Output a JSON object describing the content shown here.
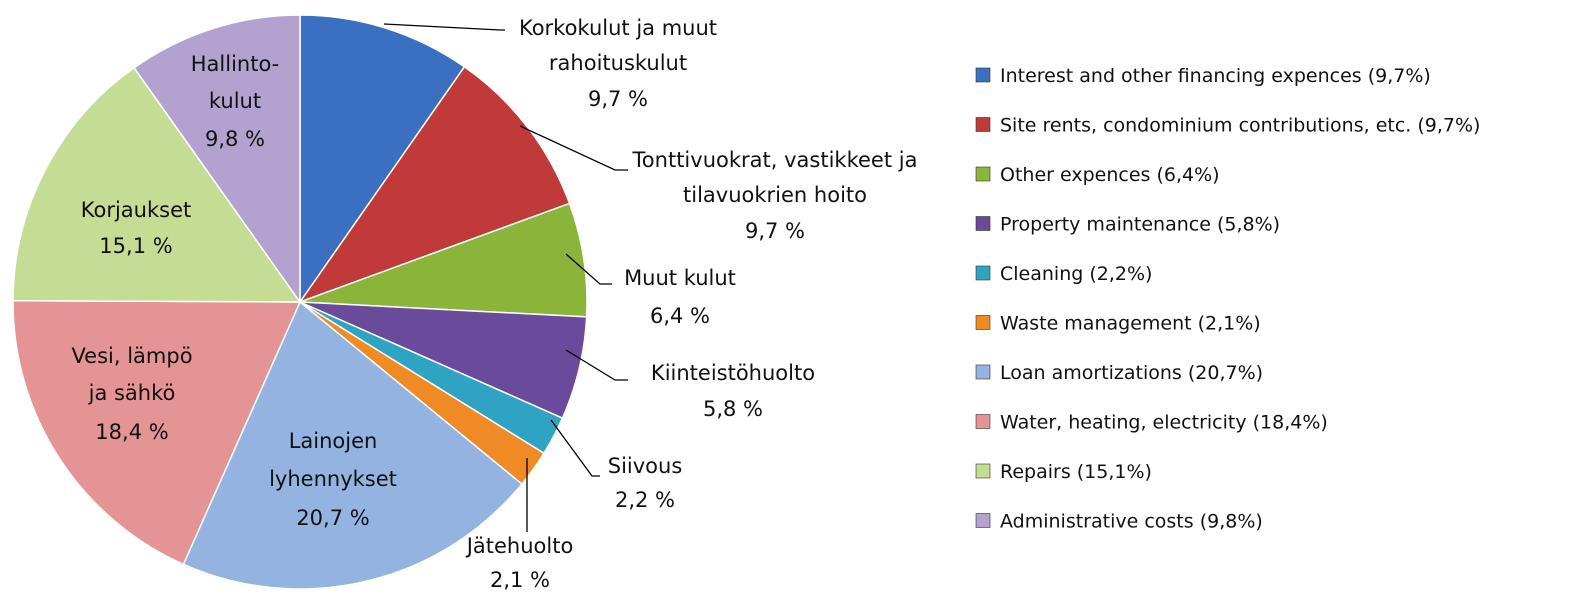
{
  "chart_data": {
    "type": "pie",
    "start_angle": "12 o'clock",
    "direction": "clockwise",
    "slices": [
      {
        "label_lines": [
          "Korkokulut ja muut",
          "rahoituskulut"
        ],
        "value": 9.7,
        "value_text": "9,7 %",
        "legend": "Interest and other financing expences (9,7%)",
        "color": "#3b6fbf",
        "label_inside": false
      },
      {
        "label_lines": [
          "Tonttivuokrat, vastikkeet ja",
          "tilavuokrien hoito"
        ],
        "value": 9.7,
        "value_text": "9,7 %",
        "legend": "Site rents, condominium contributions, etc. (9,7%)",
        "color": "#c13a3a",
        "label_inside": false
      },
      {
        "label_lines": [
          "Muut kulut"
        ],
        "value": 6.4,
        "value_text": "6,4 %",
        "legend": "Other expences (6,4%)",
        "color": "#8ab43a",
        "label_inside": false
      },
      {
        "label_lines": [
          "Kiinteistöhuolto"
        ],
        "value": 5.8,
        "value_text": "5,8 %",
        "legend": "Property maintenance (5,8%)",
        "color": "#6a4a9b",
        "label_inside": false
      },
      {
        "label_lines": [
          "Siivous"
        ],
        "value": 2.2,
        "value_text": "2,2 %",
        "legend": "Cleaning (2,2%)",
        "color": "#2fa3c2",
        "label_inside": false
      },
      {
        "label_lines": [
          "Jätehuolto"
        ],
        "value": 2.1,
        "value_text": "2,1 %",
        "legend": "Waste management (2,1%)",
        "color": "#ef8a25",
        "label_inside": false
      },
      {
        "label_lines": [
          "Lainojen",
          "lyhennykset"
        ],
        "value": 20.7,
        "value_text": "20,7 %",
        "legend": "Loan amortizations (20,7%)",
        "color": "#94b3e0",
        "label_inside": true
      },
      {
        "label_lines": [
          "Vesi, lämpö",
          "ja sähkö"
        ],
        "value": 18.4,
        "value_text": "18,4 %",
        "legend": "Water, heating, electricity (18,4%)",
        "color": "#e49494",
        "label_inside": true
      },
      {
        "label_lines": [
          "Korjaukset"
        ],
        "value": 15.1,
        "value_text": "15,1 %",
        "legend": "Repairs (15,1%)",
        "color": "#c4dc94",
        "label_inside": true
      },
      {
        "label_lines": [
          "Hallinto-",
          "kulut"
        ],
        "value": 9.8,
        "value_text": "9,8 %",
        "legend": "Administrative costs (9,8%)",
        "color": "#b3a2cf",
        "label_inside": true
      }
    ],
    "legend_position": "right"
  }
}
